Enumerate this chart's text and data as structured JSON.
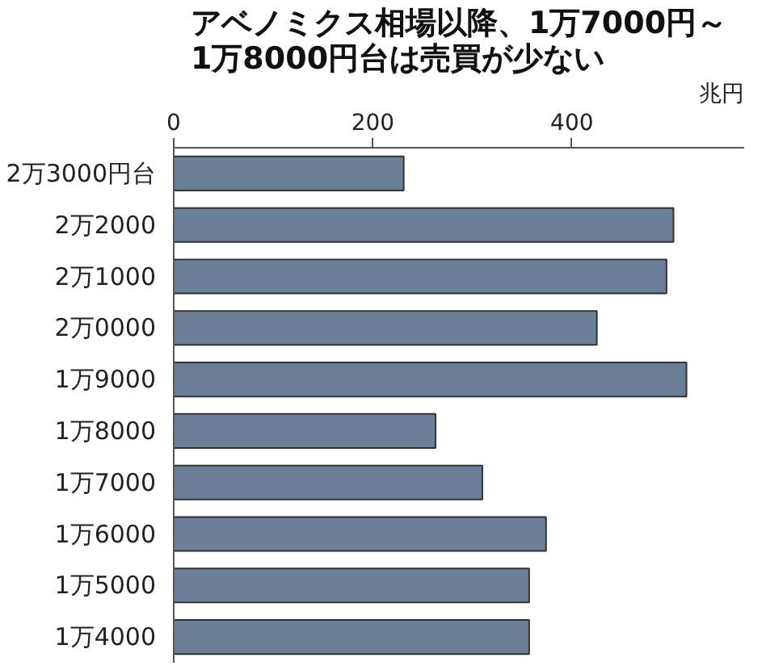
{
  "chart_data": {
    "type": "bar",
    "orientation": "horizontal",
    "title": "アベノミクス相場以降、1万7000円～\n1万8000円台は売買が少ない",
    "xlabel": "兆円",
    "categories": [
      "2万3000円台",
      "2万2000",
      "2万1000",
      "2万0000",
      "1万9000",
      "1万8000",
      "1万7000",
      "1万6000",
      "1万5000",
      "1万4000"
    ],
    "values": [
      231,
      502,
      495,
      425,
      515,
      263,
      310,
      374,
      357,
      357
    ],
    "color": "#6b7f99",
    "xlim": [
      0,
      573
    ],
    "xticks": [
      0,
      200,
      400
    ],
    "grid": false
  }
}
